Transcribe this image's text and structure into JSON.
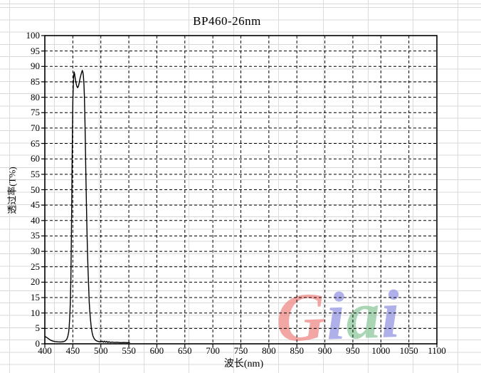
{
  "title": "BP460-26nm",
  "watermark": {
    "text": "Giai",
    "letters": [
      {
        "char": "G",
        "color": "#f0928f"
      },
      {
        "char": "i",
        "color": "#9c9ce4"
      },
      {
        "char": "a",
        "color": "#95cda4"
      },
      {
        "char": "i",
        "color": "#9c9ce4"
      }
    ]
  },
  "colors": {
    "curve": "#000000",
    "major_grid": "#000000",
    "sheet_grid": "#d8d8d8",
    "background": "#ffffff",
    "plot_border": "#000000"
  },
  "chart_data": {
    "type": "line",
    "title": "BP460-26nm",
    "xlabel": "波长(nm)",
    "ylabel": "透过率(T%)",
    "xlim": [
      400,
      1100
    ],
    "ylim": [
      0,
      100
    ],
    "x_ticks": [
      400,
      450,
      500,
      550,
      600,
      650,
      700,
      750,
      800,
      850,
      900,
      950,
      1000,
      1050,
      1100
    ],
    "y_ticks": [
      0,
      5,
      10,
      15,
      20,
      25,
      30,
      35,
      40,
      45,
      50,
      55,
      60,
      65,
      70,
      75,
      80,
      85,
      90,
      95,
      100
    ],
    "grid": "black dashed major grid both axes; light gray spreadsheet lines behind chart",
    "legend": "none",
    "series": [
      {
        "name": "BP460-26nm transmittance",
        "points": [
          [
            400,
            2.4
          ],
          [
            403,
            2.1
          ],
          [
            406,
            1.7
          ],
          [
            410,
            1.2
          ],
          [
            414,
            0.9
          ],
          [
            418,
            0.75
          ],
          [
            423,
            0.65
          ],
          [
            428,
            0.6
          ],
          [
            433,
            0.7
          ],
          [
            436,
            0.9
          ],
          [
            439,
            1.4
          ],
          [
            441,
            2.4
          ],
          [
            442.5,
            3.8
          ],
          [
            443.5,
            5.5
          ],
          [
            444.5,
            8.5
          ],
          [
            445.5,
            13
          ],
          [
            446.5,
            21
          ],
          [
            447.3,
            32
          ],
          [
            448,
            45
          ],
          [
            448.7,
            58
          ],
          [
            449.4,
            70
          ],
          [
            450.1,
            79
          ],
          [
            450.9,
            84.5
          ],
          [
            451.7,
            87.3
          ],
          [
            452.4,
            88.2
          ],
          [
            453.2,
            87.5
          ],
          [
            454.2,
            86.2
          ],
          [
            455.5,
            84.8
          ],
          [
            457,
            83.6
          ],
          [
            458.5,
            83.1
          ],
          [
            460,
            83.5
          ],
          [
            461.5,
            84.8
          ],
          [
            463,
            86.2
          ],
          [
            464.5,
            87.3
          ],
          [
            465.8,
            88.1
          ],
          [
            466.8,
            88.7
          ],
          [
            467.8,
            88.2
          ],
          [
            468.8,
            86.9
          ],
          [
            469.8,
            84.5
          ],
          [
            470.6,
            80.5
          ],
          [
            471.4,
            74.5
          ],
          [
            472.3,
            66
          ],
          [
            473.2,
            56
          ],
          [
            474.2,
            46
          ],
          [
            475.2,
            37
          ],
          [
            476.2,
            29.5
          ],
          [
            477.2,
            23.5
          ],
          [
            478.2,
            18.5
          ],
          [
            479.2,
            14
          ],
          [
            480.3,
            10.5
          ],
          [
            481.5,
            7.8
          ],
          [
            483,
            5.2
          ],
          [
            484.5,
            3.6
          ],
          [
            486,
            2.5
          ],
          [
            488,
            1.7
          ],
          [
            490.5,
            1.15
          ],
          [
            493.5,
            0.85
          ],
          [
            497,
            0.7
          ],
          [
            500,
            0.65
          ],
          [
            502.5,
            0.85
          ],
          [
            504.5,
            0.5
          ],
          [
            506.5,
            0.85
          ],
          [
            508.5,
            0.5
          ],
          [
            510.5,
            0.8
          ],
          [
            512.5,
            0.45
          ],
          [
            514.5,
            0.7
          ],
          [
            517,
            0.45
          ],
          [
            520,
            0.55
          ],
          [
            524,
            0.45
          ],
          [
            529,
            0.5
          ],
          [
            535,
            0.4
          ],
          [
            541,
            0.45
          ],
          [
            547,
            0.4
          ],
          [
            552,
            0.4
          ]
        ]
      }
    ]
  }
}
